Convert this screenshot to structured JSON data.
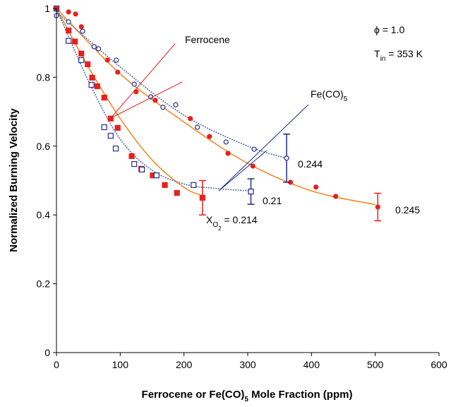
{
  "chart_data": {
    "type": "scatter",
    "x_title": [
      {
        "text": "Ferrocene or Fe(CO)"
      },
      {
        "text": "5",
        "sub": 1
      },
      {
        "text": " Mole Fraction (ppm)"
      }
    ],
    "y_title": "Normalized Burning Velocity",
    "xlim": [
      0,
      600
    ],
    "xticks": [
      0,
      100,
      200,
      300,
      400,
      500,
      600
    ],
    "ylim": [
      0,
      1
    ],
    "yticks": [
      0,
      0.2,
      0.4,
      0.6,
      0.8,
      1
    ],
    "grid": false,
    "annotations": [
      [
        {
          "text": "ϕ = 1.0"
        }
      ],
      [
        {
          "text": "T"
        },
        {
          "text": "in",
          "sub": 1
        },
        {
          "text": " = 353 K"
        }
      ],
      [
        {
          "text": "Ferrocene"
        }
      ],
      [
        {
          "text": "Fe(CO)"
        },
        {
          "text": "5",
          "sub": 1
        }
      ],
      [
        {
          "text": "0.244"
        }
      ],
      [
        {
          "text": "0.21"
        }
      ],
      [
        {
          "text": "0.245"
        }
      ],
      [
        {
          "text": "X"
        },
        {
          "text": "O",
          "sub": 1
        },
        {
          "text": "2",
          "sub": 2
        },
        {
          "text": " = 0.214"
        }
      ]
    ],
    "series": [
      {
        "marker": "square",
        "filled": true,
        "color": "#e8201e",
        "fit_color": "#f08a2a",
        "x": [
          0,
          19,
          29,
          39,
          49,
          56,
          64,
          75,
          85,
          96,
          118,
          133,
          151,
          170,
          189,
          229
        ],
        "values": [
          1.0,
          0.936,
          0.904,
          0.869,
          0.838,
          0.799,
          0.774,
          0.741,
          0.68,
          0.653,
          0.571,
          0.534,
          0.515,
          0.487,
          0.464,
          0.45
        ],
        "errors": [
          null,
          null,
          null,
          null,
          null,
          null,
          null,
          null,
          null,
          null,
          null,
          null,
          null,
          null,
          null,
          0.05
        ],
        "fit": {
          "x": [
            0,
            50,
            100,
            150,
            200,
            230
          ],
          "values": [
            1.0,
            0.83,
            0.68,
            0.56,
            0.48,
            0.455
          ]
        }
      },
      {
        "marker": "square",
        "filled": false,
        "color": "#1f2d8c",
        "fit_color": "#5a6aa8",
        "x": [
          0,
          19,
          39,
          55,
          75,
          85,
          93,
          122,
          134,
          157,
          215,
          305
        ],
        "values": [
          1.0,
          0.906,
          0.85,
          0.778,
          0.655,
          0.63,
          0.593,
          0.548,
          0.532,
          0.515,
          0.487,
          0.468
        ],
        "errors": [
          null,
          null,
          null,
          null,
          null,
          null,
          null,
          null,
          null,
          null,
          null,
          0.037
        ],
        "fit": {
          "x": [
            0,
            50,
            100,
            150,
            200,
            250,
            305
          ],
          "values": [
            1.0,
            0.79,
            0.62,
            0.53,
            0.49,
            0.477,
            0.47
          ]
        }
      },
      {
        "marker": "circle",
        "filled": true,
        "color": "#e8201e",
        "fit_color": "#f08a2a",
        "x": [
          0,
          19,
          30,
          39,
          59,
          80,
          96,
          125,
          155,
          210,
          240,
          269,
          308,
          367,
          407,
          438,
          504
        ],
        "values": [
          1.0,
          0.99,
          0.984,
          0.947,
          0.889,
          0.85,
          0.815,
          0.758,
          0.733,
          0.68,
          0.628,
          0.579,
          0.542,
          0.495,
          0.481,
          0.454,
          0.423
        ],
        "errors": [
          null,
          null,
          null,
          null,
          null,
          null,
          null,
          null,
          null,
          null,
          null,
          null,
          null,
          null,
          null,
          null,
          0.04
        ],
        "fit": {
          "x": [
            0,
            100,
            200,
            300,
            400,
            500
          ],
          "values": [
            1.0,
            0.81,
            0.67,
            0.55,
            0.47,
            0.43
          ]
        }
      },
      {
        "marker": "circle",
        "filled": false,
        "color": "#1f2d8c",
        "fit_color": "#5a6aa8",
        "x": [
          0,
          19,
          41,
          59,
          66,
          94,
          122,
          148,
          167,
          187,
          221,
          266,
          310,
          361
        ],
        "values": [
          0.979,
          0.961,
          0.934,
          0.889,
          0.883,
          0.85,
          0.78,
          0.743,
          0.713,
          0.72,
          0.655,
          0.612,
          0.591,
          0.565
        ],
        "errors": [
          null,
          null,
          null,
          null,
          null,
          null,
          null,
          null,
          null,
          null,
          null,
          null,
          null,
          0.07
        ],
        "fit": {
          "x": [
            0,
            100,
            200,
            300,
            361
          ],
          "values": [
            0.99,
            0.83,
            0.69,
            0.6,
            0.565
          ]
        }
      }
    ]
  }
}
